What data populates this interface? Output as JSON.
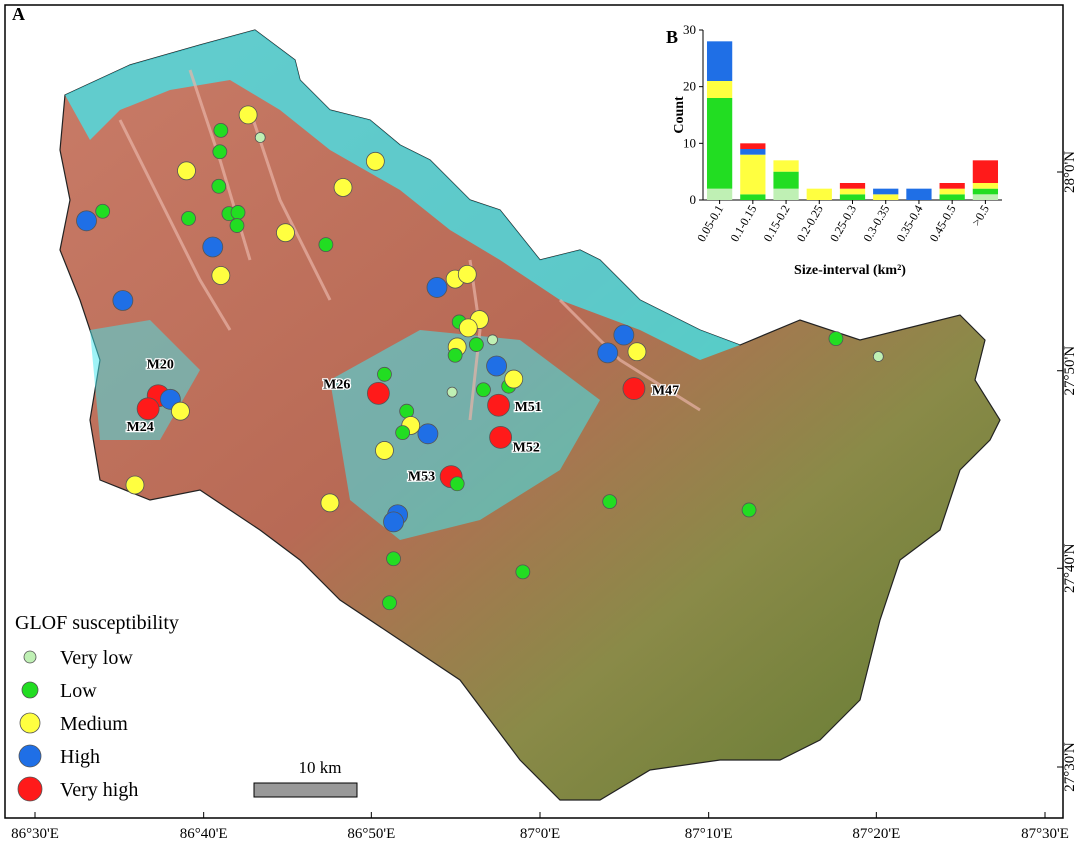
{
  "map": {
    "panel_label": "A",
    "legend_title": "GLOF susceptibility",
    "scale_label": "10 km",
    "lon_ticks": [
      {
        "value": 86.5,
        "label": "86°30'E"
      },
      {
        "value": 86.667,
        "label": "86°40'E"
      },
      {
        "value": 86.833,
        "label": "86°50'E"
      },
      {
        "value": 87.0,
        "label": "87°0'E"
      },
      {
        "value": 87.167,
        "label": "87°10'E"
      },
      {
        "value": 87.333,
        "label": "87°20'E"
      },
      {
        "value": 87.5,
        "label": "87°30'E"
      }
    ],
    "lat_ticks": [
      {
        "value": 28.0,
        "label": "28°0'N"
      },
      {
        "value": 27.833,
        "label": "27°50'N"
      },
      {
        "value": 27.667,
        "label": "27°40'N"
      },
      {
        "value": 27.5,
        "label": "27°30'N"
      }
    ],
    "points": [
      {
        "lon": 86.711,
        "lat": 28.048,
        "level": 2
      },
      {
        "lon": 86.723,
        "lat": 28.029,
        "level": 0
      },
      {
        "lon": 86.684,
        "lat": 28.035,
        "level": 1
      },
      {
        "lon": 86.683,
        "lat": 28.017,
        "level": 1
      },
      {
        "lon": 86.65,
        "lat": 28.001,
        "level": 2
      },
      {
        "lon": 86.682,
        "lat": 27.988,
        "level": 1
      },
      {
        "lon": 86.567,
        "lat": 27.967,
        "level": 1
      },
      {
        "lon": 86.551,
        "lat": 27.959,
        "level": 3
      },
      {
        "lon": 86.652,
        "lat": 27.961,
        "level": 1
      },
      {
        "lon": 86.692,
        "lat": 27.965,
        "level": 1
      },
      {
        "lon": 86.701,
        "lat": 27.966,
        "level": 1
      },
      {
        "lon": 86.7,
        "lat": 27.955,
        "level": 1
      },
      {
        "lon": 86.676,
        "lat": 27.937,
        "level": 3
      },
      {
        "lon": 86.748,
        "lat": 27.949,
        "level": 2
      },
      {
        "lon": 86.788,
        "lat": 27.939,
        "level": 1
      },
      {
        "lon": 86.805,
        "lat": 27.987,
        "level": 2
      },
      {
        "lon": 86.837,
        "lat": 28.009,
        "level": 2
      },
      {
        "lon": 86.684,
        "lat": 27.913,
        "level": 2
      },
      {
        "lon": 86.587,
        "lat": 27.892,
        "level": 3
      },
      {
        "lon": 86.898,
        "lat": 27.903,
        "level": 3
      },
      {
        "lon": 86.916,
        "lat": 27.91,
        "level": 2
      },
      {
        "lon": 86.928,
        "lat": 27.914,
        "level": 2
      },
      {
        "lon": 86.92,
        "lat": 27.874,
        "level": 1
      },
      {
        "lon": 86.94,
        "lat": 27.876,
        "level": 2
      },
      {
        "lon": 86.929,
        "lat": 27.869,
        "level": 2
      },
      {
        "lon": 86.937,
        "lat": 27.855,
        "level": 1
      },
      {
        "lon": 86.953,
        "lat": 27.859,
        "level": 0
      },
      {
        "lon": 86.918,
        "lat": 27.853,
        "level": 2
      },
      {
        "lon": 86.916,
        "lat": 27.846,
        "level": 1
      },
      {
        "lon": 86.957,
        "lat": 27.837,
        "level": 3
      },
      {
        "lon": 86.846,
        "lat": 27.83,
        "level": 1
      },
      {
        "lon": 86.84,
        "lat": 27.814,
        "level": 4,
        "label": "M26"
      },
      {
        "lon": 86.913,
        "lat": 27.815,
        "level": 0
      },
      {
        "lon": 86.944,
        "lat": 27.817,
        "level": 1
      },
      {
        "lon": 86.969,
        "lat": 27.82,
        "level": 1
      },
      {
        "lon": 86.974,
        "lat": 27.826,
        "level": 2
      },
      {
        "lon": 86.959,
        "lat": 27.804,
        "level": 4,
        "label": "M51"
      },
      {
        "lon": 86.961,
        "lat": 27.777,
        "level": 4,
        "label": "M52"
      },
      {
        "lon": 86.868,
        "lat": 27.799,
        "level": 1
      },
      {
        "lon": 86.872,
        "lat": 27.787,
        "level": 2
      },
      {
        "lon": 86.864,
        "lat": 27.781,
        "level": 1
      },
      {
        "lon": 86.889,
        "lat": 27.78,
        "level": 3
      },
      {
        "lon": 86.846,
        "lat": 27.766,
        "level": 2
      },
      {
        "lon": 86.912,
        "lat": 27.744,
        "level": 4,
        "label": "M53"
      },
      {
        "lon": 86.918,
        "lat": 27.738,
        "level": 1
      },
      {
        "lon": 86.792,
        "lat": 27.722,
        "level": 2
      },
      {
        "lon": 86.859,
        "lat": 27.712,
        "level": 3
      },
      {
        "lon": 86.855,
        "lat": 27.706,
        "level": 3
      },
      {
        "lon": 86.855,
        "lat": 27.675,
        "level": 1
      },
      {
        "lon": 86.851,
        "lat": 27.638,
        "level": 1
      },
      {
        "lon": 86.983,
        "lat": 27.664,
        "level": 1
      },
      {
        "lon": 87.069,
        "lat": 27.723,
        "level": 1
      },
      {
        "lon": 87.207,
        "lat": 27.716,
        "level": 1
      },
      {
        "lon": 87.067,
        "lat": 27.848,
        "level": 3
      },
      {
        "lon": 87.083,
        "lat": 27.863,
        "level": 3
      },
      {
        "lon": 87.096,
        "lat": 27.849,
        "level": 2
      },
      {
        "lon": 87.093,
        "lat": 27.818,
        "level": 4,
        "label": "M47"
      },
      {
        "lon": 87.293,
        "lat": 27.86,
        "level": 1
      },
      {
        "lon": 87.335,
        "lat": 27.845,
        "level": 0
      },
      {
        "lon": 86.622,
        "lat": 27.812,
        "level": 4,
        "label": "M20"
      },
      {
        "lon": 86.634,
        "lat": 27.809,
        "level": 3
      },
      {
        "lon": 86.612,
        "lat": 27.801,
        "level": 4,
        "label": "M24"
      },
      {
        "lon": 86.644,
        "lat": 27.799,
        "level": 2
      },
      {
        "lon": 86.599,
        "lat": 27.737,
        "level": 2
      }
    ]
  },
  "chart_data": {
    "type": "bar",
    "stacked": true,
    "panel_label": "B",
    "y_label": "Count",
    "x_label": "Size-interval (km²)",
    "categories": [
      "0.05-0.1",
      "0.1-0.15",
      "0.15-0.2",
      "0.2-0.25",
      "0.25-0.3",
      "0.3-0.35",
      "0.35-0.4",
      "0.45-0.5",
      ">0.5"
    ],
    "series": [
      {
        "name": "Very low",
        "color": "#bff0b4",
        "values": [
          2,
          0,
          2,
          0,
          0,
          0,
          0,
          0,
          1
        ]
      },
      {
        "name": "Low",
        "color": "#22dd22",
        "values": [
          16,
          1,
          3,
          0,
          1,
          0,
          0,
          1,
          1
        ]
      },
      {
        "name": "Medium",
        "color": "#ffff40",
        "values": [
          3,
          7,
          2,
          2,
          1,
          1,
          0,
          1,
          1
        ]
      },
      {
        "name": "High",
        "color": "#1f6fe6",
        "values": [
          7,
          1,
          0,
          0,
          0,
          1,
          2,
          0,
          0
        ]
      },
      {
        "name": "Very high",
        "color": "#ff1a1a",
        "values": [
          0,
          1,
          0,
          0,
          1,
          0,
          0,
          1,
          4
        ]
      }
    ],
    "ylim": [
      0,
      30
    ],
    "yticks": [
      0,
      10,
      20,
      30
    ]
  }
}
